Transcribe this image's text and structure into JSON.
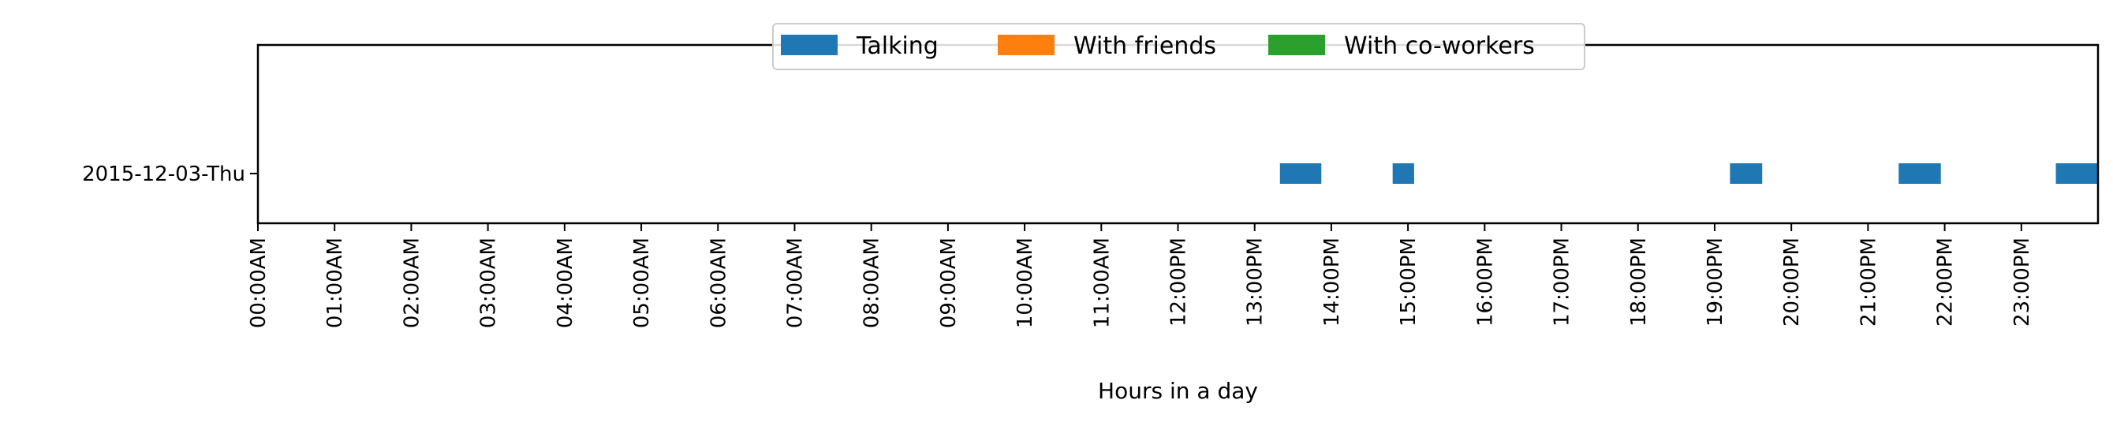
{
  "chart_data": {
    "type": "bar",
    "orientation": "horizontal",
    "xlabel": "Hours in a day",
    "ylabel": "",
    "xlim": [
      0,
      24
    ],
    "x_ticks": [
      0,
      1,
      2,
      3,
      4,
      5,
      6,
      7,
      8,
      9,
      10,
      11,
      12,
      13,
      14,
      15,
      16,
      17,
      18,
      19,
      20,
      21,
      22,
      23
    ],
    "x_tick_labels": [
      "00:00AM",
      "01:00AM",
      "02:00AM",
      "03:00AM",
      "04:00AM",
      "05:00AM",
      "06:00AM",
      "07:00AM",
      "08:00AM",
      "09:00AM",
      "10:00AM",
      "11:00AM",
      "12:00PM",
      "13:00PM",
      "14:00PM",
      "15:00PM",
      "16:00PM",
      "17:00PM",
      "18:00PM",
      "19:00PM",
      "20:00PM",
      "21:00PM",
      "22:00PM",
      "23:00PM"
    ],
    "categories": [
      "2015-12-03-Thu"
    ],
    "legend_position": "top-center",
    "grid": false,
    "series": [
      {
        "name": "Talking",
        "color": "#1f77b4",
        "segments": [
          {
            "category": "2015-12-03-Thu",
            "start": 13.33,
            "end": 13.87
          },
          {
            "category": "2015-12-03-Thu",
            "start": 14.8,
            "end": 15.08
          },
          {
            "category": "2015-12-03-Thu",
            "start": 19.2,
            "end": 19.62
          },
          {
            "category": "2015-12-03-Thu",
            "start": 21.4,
            "end": 21.95
          },
          {
            "category": "2015-12-03-Thu",
            "start": 23.45,
            "end": 24.0
          }
        ]
      },
      {
        "name": "With friends",
        "color": "#ff7f0e",
        "segments": []
      },
      {
        "name": "With co-workers",
        "color": "#2ca02c",
        "segments": []
      }
    ]
  }
}
